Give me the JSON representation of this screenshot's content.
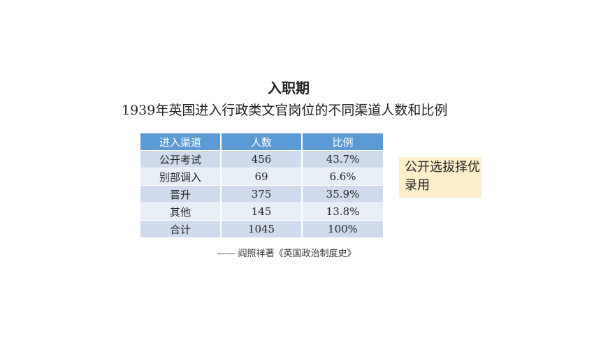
{
  "heading": "入职期",
  "subtitle": "1939年英国进入行政类文官岗位的不同渠道人数和比例",
  "table": {
    "headers": [
      "进入渠道",
      "人数",
      "比例"
    ],
    "rows": [
      [
        "公开考试",
        "456",
        "43.7%"
      ],
      [
        "别部调入",
        "69",
        "6.6%"
      ],
      [
        "晋升",
        "375",
        "35.9%"
      ],
      [
        "其他",
        "145",
        "13.8%"
      ],
      [
        "合计",
        "1045",
        "100%"
      ]
    ],
    "colors": {
      "header": "#5b9bd5",
      "row_a": "#cfdbec",
      "row_b": "#e8eef6"
    }
  },
  "callout": {
    "text": "公开选拔择优录用",
    "background": "#fcefc9"
  },
  "source": "—— 阎照祥著《英国政治制度史》"
}
